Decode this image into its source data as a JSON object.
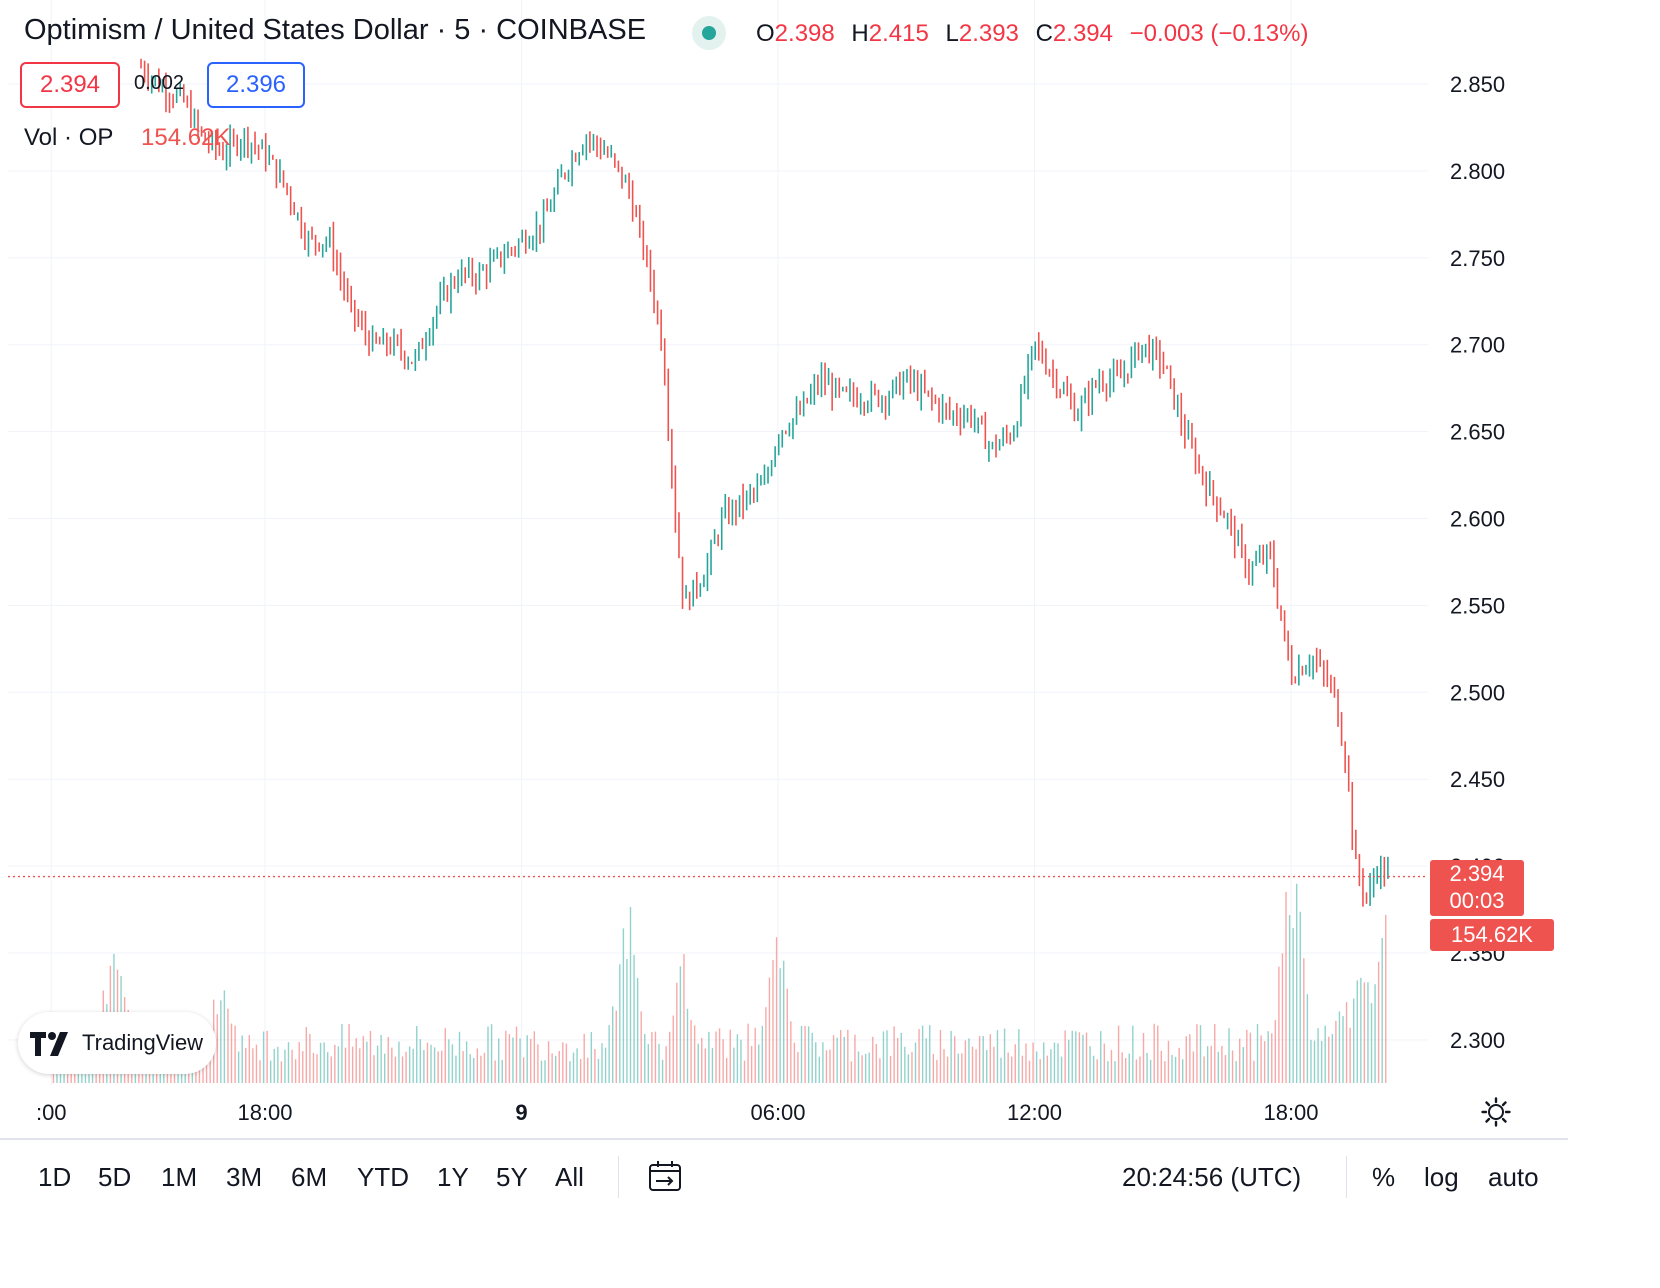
{
  "header": {
    "title": "Optimism / United States Dollar · 5 · COINBASE",
    "ohlc": [
      {
        "key": "O",
        "value": "2.398"
      },
      {
        "key": "H",
        "value": "2.415"
      },
      {
        "key": "L",
        "value": "2.393"
      },
      {
        "key": "C",
        "value": "2.394"
      },
      {
        "key": "",
        "value": "−0.003 (−0.13%)"
      }
    ],
    "sell_price": "2.394",
    "spread": "0.002",
    "buy_price": "2.396",
    "volume_label": "Vol · OP",
    "volume_value": "154.62K"
  },
  "tags": {
    "last_price": "2.394",
    "countdown": "00:03",
    "volume": "154.62K"
  },
  "colors": {
    "up": "#26a69a",
    "down": "#ef5350",
    "grid": "#f0f3fa",
    "accent_blue": "#2962ff"
  },
  "chart_data": {
    "type": "candlestick",
    "interval": "5",
    "ylim": [
      2.27,
      2.865
    ],
    "y_ticks": [
      2.85,
      2.8,
      2.75,
      2.7,
      2.65,
      2.6,
      2.55,
      2.5,
      2.45,
      2.4,
      2.35,
      2.3
    ],
    "y_tick_labels": [
      "2.850",
      "2.800",
      "2.750",
      "2.700",
      "2.650",
      "2.600",
      "2.550",
      "2.500",
      "2.450",
      "2.400",
      "2.350",
      "2.300"
    ],
    "x_ticks": [
      {
        "label": ":00",
        "hour": 13.0,
        "bold": false
      },
      {
        "label": "18:00",
        "hour": 18.0,
        "bold": false
      },
      {
        "label": "9",
        "hour": 24.0,
        "bold": true
      },
      {
        "label": "06:00",
        "hour": 30.0,
        "bold": false
      },
      {
        "label": "12:00",
        "hour": 36.0,
        "bold": false
      },
      {
        "label": "18:00",
        "hour": 42.0,
        "bold": false
      }
    ],
    "last_price": 2.394,
    "close_path": [
      {
        "h": 15.1,
        "p": 2.86
      },
      {
        "h": 15.5,
        "p": 2.85
      },
      {
        "h": 16.1,
        "p": 2.84
      },
      {
        "h": 16.5,
        "p": 2.82
      },
      {
        "h": 17.0,
        "p": 2.81
      },
      {
        "h": 17.5,
        "p": 2.82
      },
      {
        "h": 18.0,
        "p": 2.81
      },
      {
        "h": 18.5,
        "p": 2.79
      },
      {
        "h": 19.0,
        "p": 2.76
      },
      {
        "h": 19.5,
        "p": 2.76
      },
      {
        "h": 20.0,
        "p": 2.72
      },
      {
        "h": 20.5,
        "p": 2.7
      },
      {
        "h": 21.0,
        "p": 2.7
      },
      {
        "h": 21.5,
        "p": 2.69
      },
      {
        "h": 22.0,
        "p": 2.72
      },
      {
        "h": 22.5,
        "p": 2.74
      },
      {
        "h": 23.0,
        "p": 2.74
      },
      {
        "h": 23.5,
        "p": 2.75
      },
      {
        "h": 24.0,
        "p": 2.76
      },
      {
        "h": 24.5,
        "p": 2.77
      },
      {
        "h": 25.0,
        "p": 2.8
      },
      {
        "h": 25.5,
        "p": 2.82
      },
      {
        "h": 26.0,
        "p": 2.81
      },
      {
        "h": 26.5,
        "p": 2.79
      },
      {
        "h": 27.0,
        "p": 2.74
      },
      {
        "h": 27.3,
        "p": 2.7
      },
      {
        "h": 27.6,
        "p": 2.6
      },
      {
        "h": 27.8,
        "p": 2.55
      },
      {
        "h": 28.3,
        "p": 2.57
      },
      {
        "h": 28.7,
        "p": 2.6
      },
      {
        "h": 29.2,
        "p": 2.61
      },
      {
        "h": 29.7,
        "p": 2.62
      },
      {
        "h": 30.0,
        "p": 2.65
      },
      {
        "h": 30.5,
        "p": 2.66
      },
      {
        "h": 31.0,
        "p": 2.68
      },
      {
        "h": 31.5,
        "p": 2.67
      },
      {
        "h": 32.0,
        "p": 2.67
      },
      {
        "h": 32.5,
        "p": 2.67
      },
      {
        "h": 33.0,
        "p": 2.68
      },
      {
        "h": 33.5,
        "p": 2.67
      },
      {
        "h": 34.0,
        "p": 2.66
      },
      {
        "h": 34.5,
        "p": 2.66
      },
      {
        "h": 35.0,
        "p": 2.64
      },
      {
        "h": 35.5,
        "p": 2.65
      },
      {
        "h": 36.0,
        "p": 2.7
      },
      {
        "h": 36.5,
        "p": 2.68
      },
      {
        "h": 37.0,
        "p": 2.66
      },
      {
        "h": 37.5,
        "p": 2.68
      },
      {
        "h": 38.0,
        "p": 2.68
      },
      {
        "h": 38.5,
        "p": 2.7
      },
      {
        "h": 39.0,
        "p": 2.69
      },
      {
        "h": 39.5,
        "p": 2.65
      },
      {
        "h": 40.0,
        "p": 2.62
      },
      {
        "h": 40.5,
        "p": 2.6
      },
      {
        "h": 41.0,
        "p": 2.57
      },
      {
        "h": 41.5,
        "p": 2.58
      },
      {
        "h": 42.0,
        "p": 2.51
      },
      {
        "h": 42.5,
        "p": 2.52
      },
      {
        "h": 43.0,
        "p": 2.5
      },
      {
        "h": 43.3,
        "p": 2.46
      },
      {
        "h": 43.5,
        "p": 2.4
      },
      {
        "h": 43.8,
        "p": 2.38
      },
      {
        "h": 44.0,
        "p": 2.4
      },
      {
        "h": 44.3,
        "p": 2.394
      }
    ],
    "volume_spikes": [
      {
        "h": 14.5,
        "v": 0.7
      },
      {
        "h": 17.0,
        "v": 0.48
      },
      {
        "h": 26.5,
        "v": 0.75
      },
      {
        "h": 27.8,
        "v": 0.52
      },
      {
        "h": 30.0,
        "v": 0.6
      },
      {
        "h": 42.0,
        "v": 1.0
      },
      {
        "h": 43.2,
        "v": 0.4
      },
      {
        "h": 43.7,
        "v": 0.55
      },
      {
        "h": 44.2,
        "v": 0.65
      }
    ]
  },
  "toolbar": {
    "ranges": [
      "1D",
      "5D",
      "1M",
      "3M",
      "6M",
      "YTD",
      "1Y",
      "5Y",
      "All"
    ],
    "clock": "20:24:56 (UTC)",
    "percent": "%",
    "log": "log",
    "auto": "auto"
  },
  "branding": {
    "name": "TradingView"
  }
}
